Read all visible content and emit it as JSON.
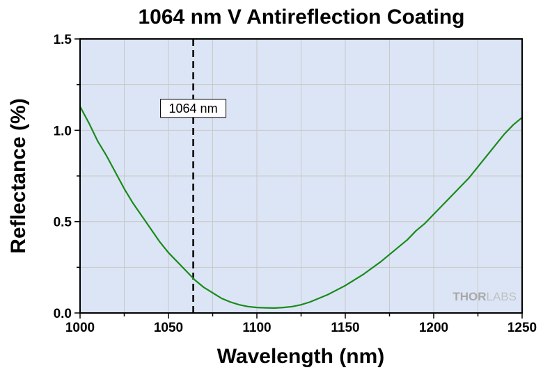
{
  "chart_data": {
    "type": "line",
    "title": "1064 nm V Antireflection Coating",
    "xlabel": "Wavelength (nm)",
    "ylabel": "Reflectance (%)",
    "xlim": [
      1000,
      1250
    ],
    "ylim": [
      0,
      1.5
    ],
    "xticks": [
      1000,
      1050,
      1100,
      1150,
      1200,
      1250
    ],
    "yticks": [
      0.0,
      0.5,
      1.0,
      1.5
    ],
    "xtick_labels": [
      "1000",
      "1050",
      "1100",
      "1150",
      "1200",
      "1250"
    ],
    "ytick_labels": [
      "0.0",
      "0.5",
      "1.0",
      "1.5"
    ],
    "grid": true,
    "series": [
      {
        "color": "#1a8a1a",
        "x": [
          1000,
          1005,
          1010,
          1015,
          1020,
          1025,
          1030,
          1035,
          1040,
          1045,
          1050,
          1055,
          1060,
          1065,
          1070,
          1075,
          1080,
          1085,
          1090,
          1095,
          1100,
          1105,
          1110,
          1115,
          1120,
          1125,
          1130,
          1135,
          1140,
          1145,
          1150,
          1155,
          1160,
          1165,
          1170,
          1175,
          1180,
          1185,
          1190,
          1195,
          1200,
          1205,
          1210,
          1215,
          1220,
          1225,
          1230,
          1235,
          1240,
          1245,
          1250
        ],
        "y": [
          1.13,
          1.04,
          0.94,
          0.86,
          0.77,
          0.68,
          0.6,
          0.53,
          0.46,
          0.39,
          0.33,
          0.28,
          0.23,
          0.18,
          0.14,
          0.11,
          0.08,
          0.06,
          0.045,
          0.035,
          0.03,
          0.028,
          0.027,
          0.03,
          0.035,
          0.045,
          0.06,
          0.08,
          0.1,
          0.125,
          0.15,
          0.18,
          0.21,
          0.245,
          0.28,
          0.32,
          0.36,
          0.4,
          0.45,
          0.49,
          0.54,
          0.59,
          0.64,
          0.69,
          0.74,
          0.8,
          0.86,
          0.92,
          0.98,
          1.03,
          1.07
        ]
      }
    ],
    "annotations": [
      {
        "type": "vline",
        "x": 1064,
        "style": "dashed",
        "color": "#000000",
        "label": "1064 nm",
        "label_y": 1.12
      }
    ],
    "watermark": {
      "bold": "THOR",
      "light": "LABS"
    },
    "colors": {
      "plot_background": "#dce5f5",
      "grid": "#c8c8c8",
      "line": "#1a8a1a"
    }
  }
}
